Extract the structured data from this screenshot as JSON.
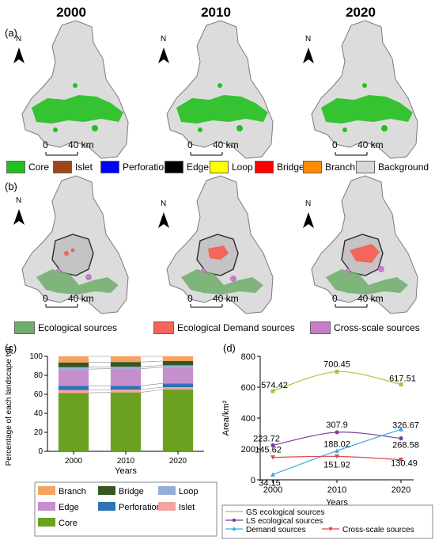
{
  "years": [
    "2000",
    "2010",
    "2020"
  ],
  "panel_labels": {
    "a": "(a)",
    "b": "(b)",
    "c": "(c)",
    "d": "(d)"
  },
  "north_label": "N",
  "scalebar": {
    "zero": "0",
    "dist": "40 km"
  },
  "legend_a": [
    {
      "label": "Core",
      "color": "#22c01e"
    },
    {
      "label": "Islet",
      "color": "#a0451a"
    },
    {
      "label": "Perforation",
      "color": "#0000ff"
    },
    {
      "label": "Edge",
      "color": "#000000"
    },
    {
      "label": "Loop",
      "color": "#ffff00"
    },
    {
      "label": "Bridge",
      "color": "#ff0000"
    },
    {
      "label": "Branch",
      "color": "#ff8c00"
    },
    {
      "label": "Background",
      "color": "#d9d9d9"
    }
  ],
  "legend_b": [
    {
      "label": "Ecological sources",
      "color": "#6fae6a"
    },
    {
      "label": "Ecological Demand sources",
      "color": "#f4655a"
    },
    {
      "label": "Cross-scale sources",
      "color": "#c77cc8"
    }
  ],
  "chart_data": [
    {
      "type": "bar",
      "stacked": true,
      "ylabel": "Percentage of each landscape type",
      "xlabel": "Years",
      "categories": [
        "2000",
        "2010",
        "2020"
      ],
      "series": [
        {
          "name": "Core",
          "color": "#6aa121",
          "values": [
            61.5,
            62,
            65
          ]
        },
        {
          "name": "Islet",
          "color": "#f4a3a3",
          "values": [
            3,
            3,
            2.5
          ]
        },
        {
          "name": "Perforation",
          "color": "#2e74b5",
          "values": [
            4.5,
            4,
            4
          ]
        },
        {
          "name": "Edge",
          "color": "#c58fce",
          "values": [
            17.5,
            18,
            17
          ]
        },
        {
          "name": "Loop",
          "color": "#92aed8",
          "values": [
            2,
            2,
            2
          ]
        },
        {
          "name": "Bridge",
          "color": "#375623",
          "values": [
            5,
            5,
            4.5
          ]
        },
        {
          "name": "Branch",
          "color": "#f4a460",
          "values": [
            6.5,
            6,
            5
          ]
        }
      ],
      "ylim": [
        0,
        100
      ],
      "yticks": [
        0,
        20,
        40,
        60,
        80,
        100
      ]
    },
    {
      "type": "line",
      "ylabel": "Area/km²",
      "xlabel": "Years",
      "x": [
        "2000",
        "2010",
        "2020"
      ],
      "ylim": [
        0,
        800
      ],
      "yticks": [
        0,
        200,
        400,
        600,
        800
      ],
      "series": [
        {
          "name": "GS ecological sources",
          "color": "#9ccc3c",
          "marker": "square",
          "values": [
            574.42,
            700.45,
            617.51
          ],
          "labels": [
            "574.42",
            "700.45",
            "617.51"
          ]
        },
        {
          "name": "LS ecological sources",
          "color": "#7b3fa0",
          "marker": "circle",
          "values": [
            223.72,
            307.9,
            268.58
          ],
          "labels": [
            "223.72",
            "307.9",
            "268.58"
          ]
        },
        {
          "name": "Demand sources",
          "color": "#3fa7e0",
          "marker": "triangle",
          "values": [
            34.15,
            188.02,
            326.67
          ],
          "labels": [
            "34.15",
            "188.02",
            "326.67"
          ]
        },
        {
          "name": "Cross-scale sources",
          "color": "#d94a4a",
          "marker": "triangle-down",
          "values": [
            145.62,
            151.92,
            130.49
          ],
          "labels": [
            "145.62",
            "151.92",
            "130.49"
          ]
        }
      ]
    }
  ]
}
